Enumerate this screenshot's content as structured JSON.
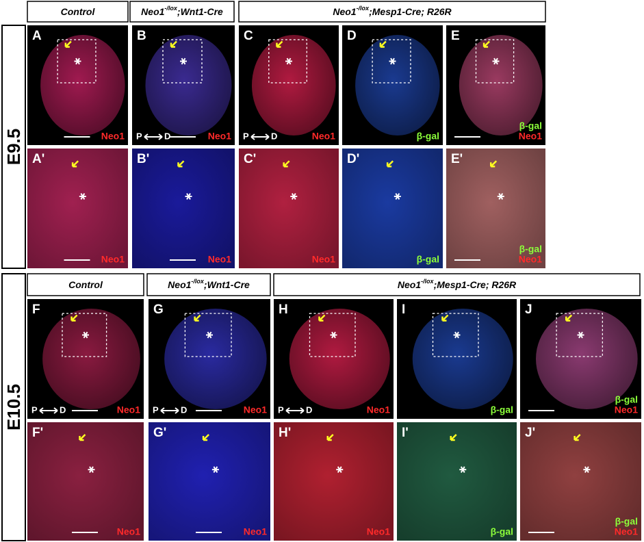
{
  "rows": [
    {
      "stage": "E9.5",
      "headers": [
        {
          "parts": [
            "Control"
          ]
        },
        {
          "parts": [
            "Neo1",
            "-/lox",
            ";Wnt1-Cre"
          ]
        },
        {
          "parts": [
            "Neo1",
            "-/lox",
            ";Mesp1-Cre; R26R"
          ]
        }
      ],
      "panels": [
        {
          "letter": "A",
          "tint": "#a01a50",
          "labels": [
            {
              "text": "Neo1",
              "color": "#ff2a2a"
            }
          ]
        },
        {
          "letter": "B",
          "tint": "#3a2a90",
          "labels": [
            {
              "text": "Neo1",
              "color": "#ff2a2a"
            }
          ],
          "axis": [
            "P",
            "D"
          ]
        },
        {
          "letter": "C",
          "tint": "#b01a40",
          "labels": [
            {
              "text": "Neo1",
              "color": "#ff2a2a"
            }
          ],
          "axis": [
            "P",
            "D"
          ]
        },
        {
          "letter": "D",
          "tint": "#1a3a90",
          "labels": [
            {
              "text": "β-gal",
              "color": "#8cff3a"
            }
          ]
        },
        {
          "letter": "E",
          "tint": "#9a3a60",
          "labels": [
            {
              "text": "β-gal",
              "color": "#8cff3a"
            },
            {
              "text": "Neo1",
              "color": "#ff2a2a"
            }
          ]
        },
        {
          "letter": "A'",
          "tint": "#a02050",
          "labels": [
            {
              "text": "Neo1",
              "color": "#ff2a2a"
            }
          ]
        },
        {
          "letter": "B'",
          "tint": "#1a1a9a",
          "labels": [
            {
              "text": "Neo1",
              "color": "#ff2a2a"
            }
          ]
        },
        {
          "letter": "C'",
          "tint": "#b02040",
          "labels": [
            {
              "text": "Neo1",
              "color": "#ff2a2a"
            }
          ]
        },
        {
          "letter": "D'",
          "tint": "#1a3aa0",
          "labels": [
            {
              "text": "β-gal",
              "color": "#8cff3a"
            }
          ]
        },
        {
          "letter": "E'",
          "tint": "#a06060",
          "labels": [
            {
              "text": "β-gal",
              "color": "#8cff3a"
            },
            {
              "text": "Neo1",
              "color": "#ff2a2a"
            }
          ]
        }
      ]
    },
    {
      "stage": "E10.5",
      "headers": [
        {
          "parts": [
            "Control"
          ]
        },
        {
          "parts": [
            "Neo1",
            "-/lox",
            ";Wnt1-Cre"
          ]
        },
        {
          "parts": [
            "Neo1",
            "-/lox",
            ";Mesp1-Cre; R26R"
          ]
        }
      ],
      "panels": [
        {
          "letter": "F",
          "tint": "#8a1a40",
          "labels": [
            {
              "text": "Neo1",
              "color": "#ff2a2a"
            }
          ],
          "axis": [
            "P",
            "D"
          ]
        },
        {
          "letter": "G",
          "tint": "#2a2aa0",
          "labels": [
            {
              "text": "Neo1",
              "color": "#ff2a2a"
            }
          ],
          "axis": [
            "P",
            "D"
          ]
        },
        {
          "letter": "H",
          "tint": "#b01a40",
          "labels": [
            {
              "text": "Neo1",
              "color": "#ff2a2a"
            }
          ],
          "axis": [
            "P",
            "D"
          ]
        },
        {
          "letter": "I",
          "tint": "#1a3a90",
          "labels": [
            {
              "text": "β-gal",
              "color": "#8cff3a"
            }
          ]
        },
        {
          "letter": "J",
          "tint": "#8a3a70",
          "labels": [
            {
              "text": "β-gal",
              "color": "#8cff3a"
            },
            {
              "text": "Neo1",
              "color": "#ff2a2a"
            }
          ]
        },
        {
          "letter": "F'",
          "tint": "#8a2040",
          "labels": [
            {
              "text": "Neo1",
              "color": "#ff2a2a"
            }
          ]
        },
        {
          "letter": "G'",
          "tint": "#2020b0",
          "labels": [
            {
              "text": "Neo1",
              "color": "#ff2a2a"
            }
          ]
        },
        {
          "letter": "H'",
          "tint": "#b02030",
          "labels": [
            {
              "text": "Neo1",
              "color": "#ff2a2a"
            }
          ]
        },
        {
          "letter": "I'",
          "tint": "#205a40",
          "labels": [
            {
              "text": "β-gal",
              "color": "#8cff3a"
            }
          ]
        },
        {
          "letter": "J'",
          "tint": "#904040",
          "labels": [
            {
              "text": "β-gal",
              "color": "#8cff3a"
            },
            {
              "text": "Neo1",
              "color": "#ff2a2a"
            }
          ]
        }
      ]
    }
  ]
}
